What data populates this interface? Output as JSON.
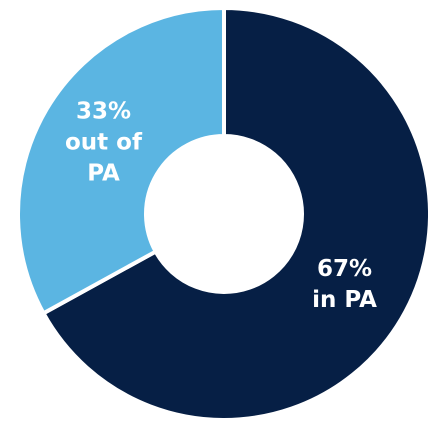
{
  "chart_data": {
    "type": "donut",
    "categories": [
      "in PA",
      "out of PA"
    ],
    "values": [
      67,
      33
    ],
    "value_labels": [
      "67%",
      "33%"
    ],
    "colors": [
      "#061f45",
      "#5bb5e2"
    ]
  }
}
